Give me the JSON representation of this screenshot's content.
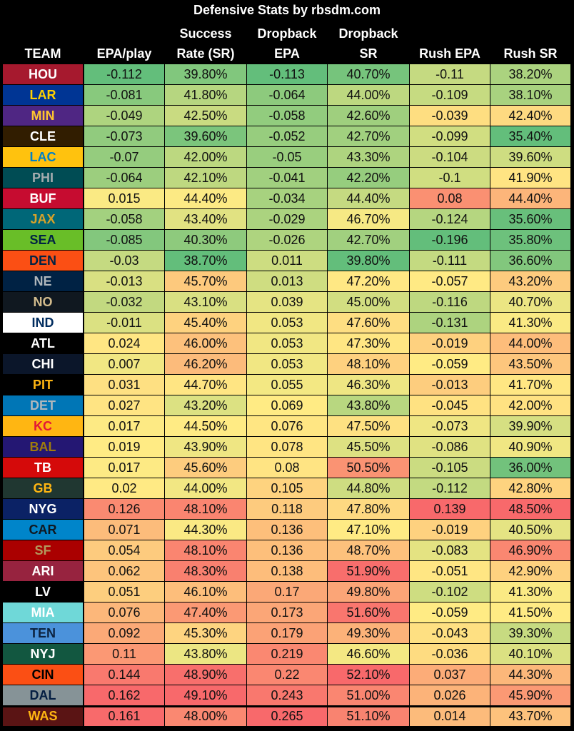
{
  "chart_data": {
    "type": "table",
    "title": "Defensive Stats by rbsdm.com",
    "columns": [
      {
        "line1": "",
        "line2": "TEAM"
      },
      {
        "line1": "",
        "line2": "EPA/play"
      },
      {
        "line1": "Success",
        "line2": "Rate (SR)"
      },
      {
        "line1": "Dropback",
        "line2": "EPA"
      },
      {
        "line1": "Dropback",
        "line2": "SR"
      },
      {
        "line1": "",
        "line2": "Rush EPA"
      },
      {
        "line1": "",
        "line2": "Rush SR"
      }
    ],
    "rows": [
      {
        "team": "HOU",
        "bg": "#a6192e",
        "fg": "#ffffff",
        "vals": [
          "-0.112",
          "39.80%",
          "-0.113",
          "40.70%",
          "-0.11",
          "38.20%"
        ]
      },
      {
        "team": "LAR",
        "bg": "#003594",
        "fg": "#ffd100",
        "vals": [
          "-0.081",
          "41.80%",
          "-0.064",
          "44.00%",
          "-0.109",
          "38.10%"
        ]
      },
      {
        "team": "MIN",
        "bg": "#4f2683",
        "fg": "#ffc62f",
        "vals": [
          "-0.049",
          "42.50%",
          "-0.058",
          "42.60%",
          "-0.039",
          "42.40%"
        ]
      },
      {
        "team": "CLE",
        "bg": "#311d00",
        "fg": "#ffffff",
        "vals": [
          "-0.073",
          "39.60%",
          "-0.052",
          "42.70%",
          "-0.099",
          "35.40%"
        ]
      },
      {
        "team": "LAC",
        "bg": "#ffc20e",
        "fg": "#0080c6",
        "vals": [
          "-0.07",
          "42.00%",
          "-0.05",
          "43.30%",
          "-0.104",
          "39.60%"
        ]
      },
      {
        "team": "PHI",
        "bg": "#004c54",
        "fg": "#a5acaf",
        "vals": [
          "-0.064",
          "42.10%",
          "-0.041",
          "42.20%",
          "-0.1",
          "41.90%"
        ]
      },
      {
        "team": "BUF",
        "bg": "#c60c30",
        "fg": "#ffffff",
        "vals": [
          "0.015",
          "44.40%",
          "-0.034",
          "44.40%",
          "0.08",
          "44.40%"
        ]
      },
      {
        "team": "JAX",
        "bg": "#006778",
        "fg": "#d7a22a",
        "vals": [
          "-0.058",
          "43.40%",
          "-0.029",
          "46.70%",
          "-0.124",
          "35.60%"
        ]
      },
      {
        "team": "SEA",
        "bg": "#69be28",
        "fg": "#002244",
        "vals": [
          "-0.085",
          "40.30%",
          "-0.026",
          "42.70%",
          "-0.196",
          "35.80%"
        ]
      },
      {
        "team": "DEN",
        "bg": "#fb4f14",
        "fg": "#002244",
        "vals": [
          "-0.03",
          "38.70%",
          "0.011",
          "39.80%",
          "-0.111",
          "36.60%"
        ]
      },
      {
        "team": "NE",
        "bg": "#002244",
        "fg": "#b0b7bc",
        "vals": [
          "-0.013",
          "45.70%",
          "0.013",
          "47.20%",
          "-0.057",
          "43.20%"
        ]
      },
      {
        "team": "NO",
        "bg": "#101820",
        "fg": "#d3bc8d",
        "vals": [
          "-0.032",
          "43.10%",
          "0.039",
          "45.00%",
          "-0.116",
          "40.70%"
        ]
      },
      {
        "team": "IND",
        "bg": "#ffffff",
        "fg": "#002c5f",
        "vals": [
          "-0.011",
          "45.40%",
          "0.053",
          "47.60%",
          "-0.131",
          "41.30%"
        ]
      },
      {
        "team": "ATL",
        "bg": "#000000",
        "fg": "#ffffff",
        "vals": [
          "0.024",
          "46.00%",
          "0.053",
          "47.30%",
          "-0.019",
          "44.00%"
        ]
      },
      {
        "team": "CHI",
        "bg": "#0b162a",
        "fg": "#ffffff",
        "vals": [
          "0.007",
          "46.20%",
          "0.053",
          "48.10%",
          "-0.059",
          "43.50%"
        ]
      },
      {
        "team": "PIT",
        "bg": "#000000",
        "fg": "#ffb612",
        "vals": [
          "0.031",
          "44.70%",
          "0.055",
          "46.30%",
          "-0.013",
          "41.70%"
        ]
      },
      {
        "team": "DET",
        "bg": "#0076b6",
        "fg": "#b0b7bc",
        "vals": [
          "0.027",
          "43.20%",
          "0.069",
          "43.80%",
          "-0.045",
          "42.00%"
        ]
      },
      {
        "team": "KC",
        "bg": "#ffb612",
        "fg": "#e31837",
        "vals": [
          "0.017",
          "44.50%",
          "0.076",
          "47.50%",
          "-0.073",
          "39.90%"
        ]
      },
      {
        "team": "BAL",
        "bg": "#241773",
        "fg": "#9e7c0c",
        "vals": [
          "0.019",
          "43.90%",
          "0.078",
          "45.50%",
          "-0.086",
          "40.90%"
        ]
      },
      {
        "team": "TB",
        "bg": "#d50a0a",
        "fg": "#ffffff",
        "vals": [
          "0.017",
          "45.60%",
          "0.08",
          "50.50%",
          "-0.105",
          "36.00%"
        ]
      },
      {
        "team": "GB",
        "bg": "#203731",
        "fg": "#ffb612",
        "vals": [
          "0.02",
          "44.00%",
          "0.105",
          "44.80%",
          "-0.112",
          "42.80%"
        ]
      },
      {
        "team": "NYG",
        "bg": "#0b2265",
        "fg": "#ffffff",
        "vals": [
          "0.126",
          "48.10%",
          "0.118",
          "47.80%",
          "0.139",
          "48.50%"
        ]
      },
      {
        "team": "CAR",
        "bg": "#0085ca",
        "fg": "#101820",
        "vals": [
          "0.071",
          "44.30%",
          "0.136",
          "47.10%",
          "-0.019",
          "40.50%"
        ]
      },
      {
        "team": "SF",
        "bg": "#aa0000",
        "fg": "#b3995d",
        "vals": [
          "0.054",
          "48.10%",
          "0.136",
          "48.70%",
          "-0.083",
          "46.90%"
        ]
      },
      {
        "team": "ARI",
        "bg": "#97233f",
        "fg": "#ffffff",
        "vals": [
          "0.062",
          "48.30%",
          "0.138",
          "51.90%",
          "-0.051",
          "42.90%"
        ]
      },
      {
        "team": "LV",
        "bg": "#000000",
        "fg": "#ffffff",
        "vals": [
          "0.051",
          "46.10%",
          "0.17",
          "49.80%",
          "-0.102",
          "41.30%"
        ]
      },
      {
        "team": "MIA",
        "bg": "#6fd8d8",
        "fg": "#ffffff",
        "vals": [
          "0.076",
          "47.40%",
          "0.173",
          "51.60%",
          "-0.059",
          "41.50%"
        ]
      },
      {
        "team": "TEN",
        "bg": "#4b92db",
        "fg": "#0c2340",
        "vals": [
          "0.092",
          "45.30%",
          "0.179",
          "49.30%",
          "-0.043",
          "39.30%"
        ]
      },
      {
        "team": "NYJ",
        "bg": "#125740",
        "fg": "#ffffff",
        "vals": [
          "0.11",
          "43.80%",
          "0.219",
          "46.60%",
          "-0.036",
          "40.10%"
        ]
      },
      {
        "team": "CIN",
        "bg": "#fb4f14",
        "fg": "#000000",
        "vals": [
          "0.144",
          "48.90%",
          "0.22",
          "52.10%",
          "0.037",
          "44.30%"
        ]
      },
      {
        "team": "DAL",
        "bg": "#869397",
        "fg": "#041e42",
        "vals": [
          "0.162",
          "49.10%",
          "0.243",
          "51.00%",
          "0.026",
          "45.90%"
        ]
      },
      {
        "team": "WAS",
        "bg": "#5a1414",
        "fg": "#ffb612",
        "vals": [
          "0.161",
          "48.00%",
          "0.265",
          "51.10%",
          "0.014",
          "43.70%"
        ]
      }
    ]
  }
}
